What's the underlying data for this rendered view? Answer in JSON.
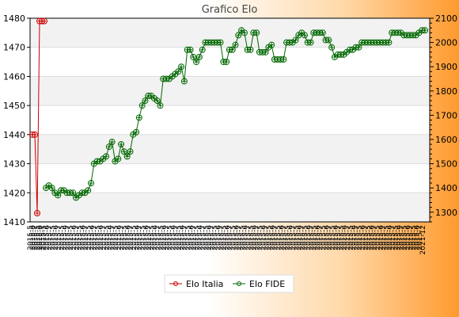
{
  "chart_data": {
    "type": "line",
    "title": "Grafico Elo",
    "legend": {
      "placement": "bottom-center"
    },
    "grid": "horizontal-bands",
    "y_left": {
      "ylim": [
        1410,
        1480
      ],
      "ticks": [
        1410,
        1420,
        1430,
        1440,
        1450,
        1460,
        1470,
        1480
      ]
    },
    "y_right": {
      "ylim": [
        1260,
        2100
      ],
      "ticks": [
        1300,
        1400,
        1500,
        1600,
        1700,
        1800,
        1900,
        2000,
        2100
      ]
    },
    "x_tick_label_sample": [
      "2015-5",
      "2015-6",
      "2015-7"
    ],
    "x_tick_label_last": "2021-12",
    "series": [
      {
        "name": "Elo Italia",
        "color": "#cc0000",
        "axis": "left",
        "points": [
          [
            0,
            1440
          ],
          [
            1,
            1440
          ],
          [
            2,
            1413
          ],
          [
            3,
            1479
          ],
          [
            4,
            1479
          ],
          [
            5,
            1479
          ]
        ]
      },
      {
        "name": "Elo FIDE",
        "color": "#006600",
        "axis": "right",
        "values": [
          1400,
          1410,
          1400,
          1380,
          1370,
          1390,
          1390,
          1380,
          1380,
          1380,
          1360,
          1370,
          1380,
          1380,
          1390,
          1420,
          1500,
          1510,
          1510,
          1520,
          1530,
          1570,
          1590,
          1510,
          1520,
          1580,
          1550,
          1530,
          1550,
          1620,
          1630,
          1690,
          1740,
          1760,
          1780,
          1780,
          1770,
          1760,
          1740,
          1850,
          1850,
          1850,
          1860,
          1870,
          1880,
          1900,
          1840,
          1970,
          1970,
          1940,
          1920,
          1940,
          1970,
          2000,
          2000,
          2000,
          2000,
          2000,
          2000,
          1920,
          1920,
          1970,
          1970,
          1990,
          2030,
          2050,
          2040,
          1970,
          1970,
          2040,
          2040,
          1960,
          1960,
          1960,
          1980,
          1990,
          1930,
          1930,
          1930,
          1930,
          2000,
          2000,
          2000,
          2010,
          2030,
          2040,
          2030,
          2000,
          2000,
          2040,
          2040,
          2040,
          2040,
          2010,
          2010,
          1980,
          1940,
          1950,
          1950,
          1950,
          1960,
          1970,
          1970,
          1980,
          1980,
          2000,
          2000,
          2000,
          2000,
          2000,
          2000,
          2000,
          2000,
          2000,
          2000,
          2040,
          2040,
          2040,
          2040,
          2030,
          2030,
          2030,
          2030,
          2030,
          2040,
          2050,
          2050
        ]
      }
    ]
  }
}
